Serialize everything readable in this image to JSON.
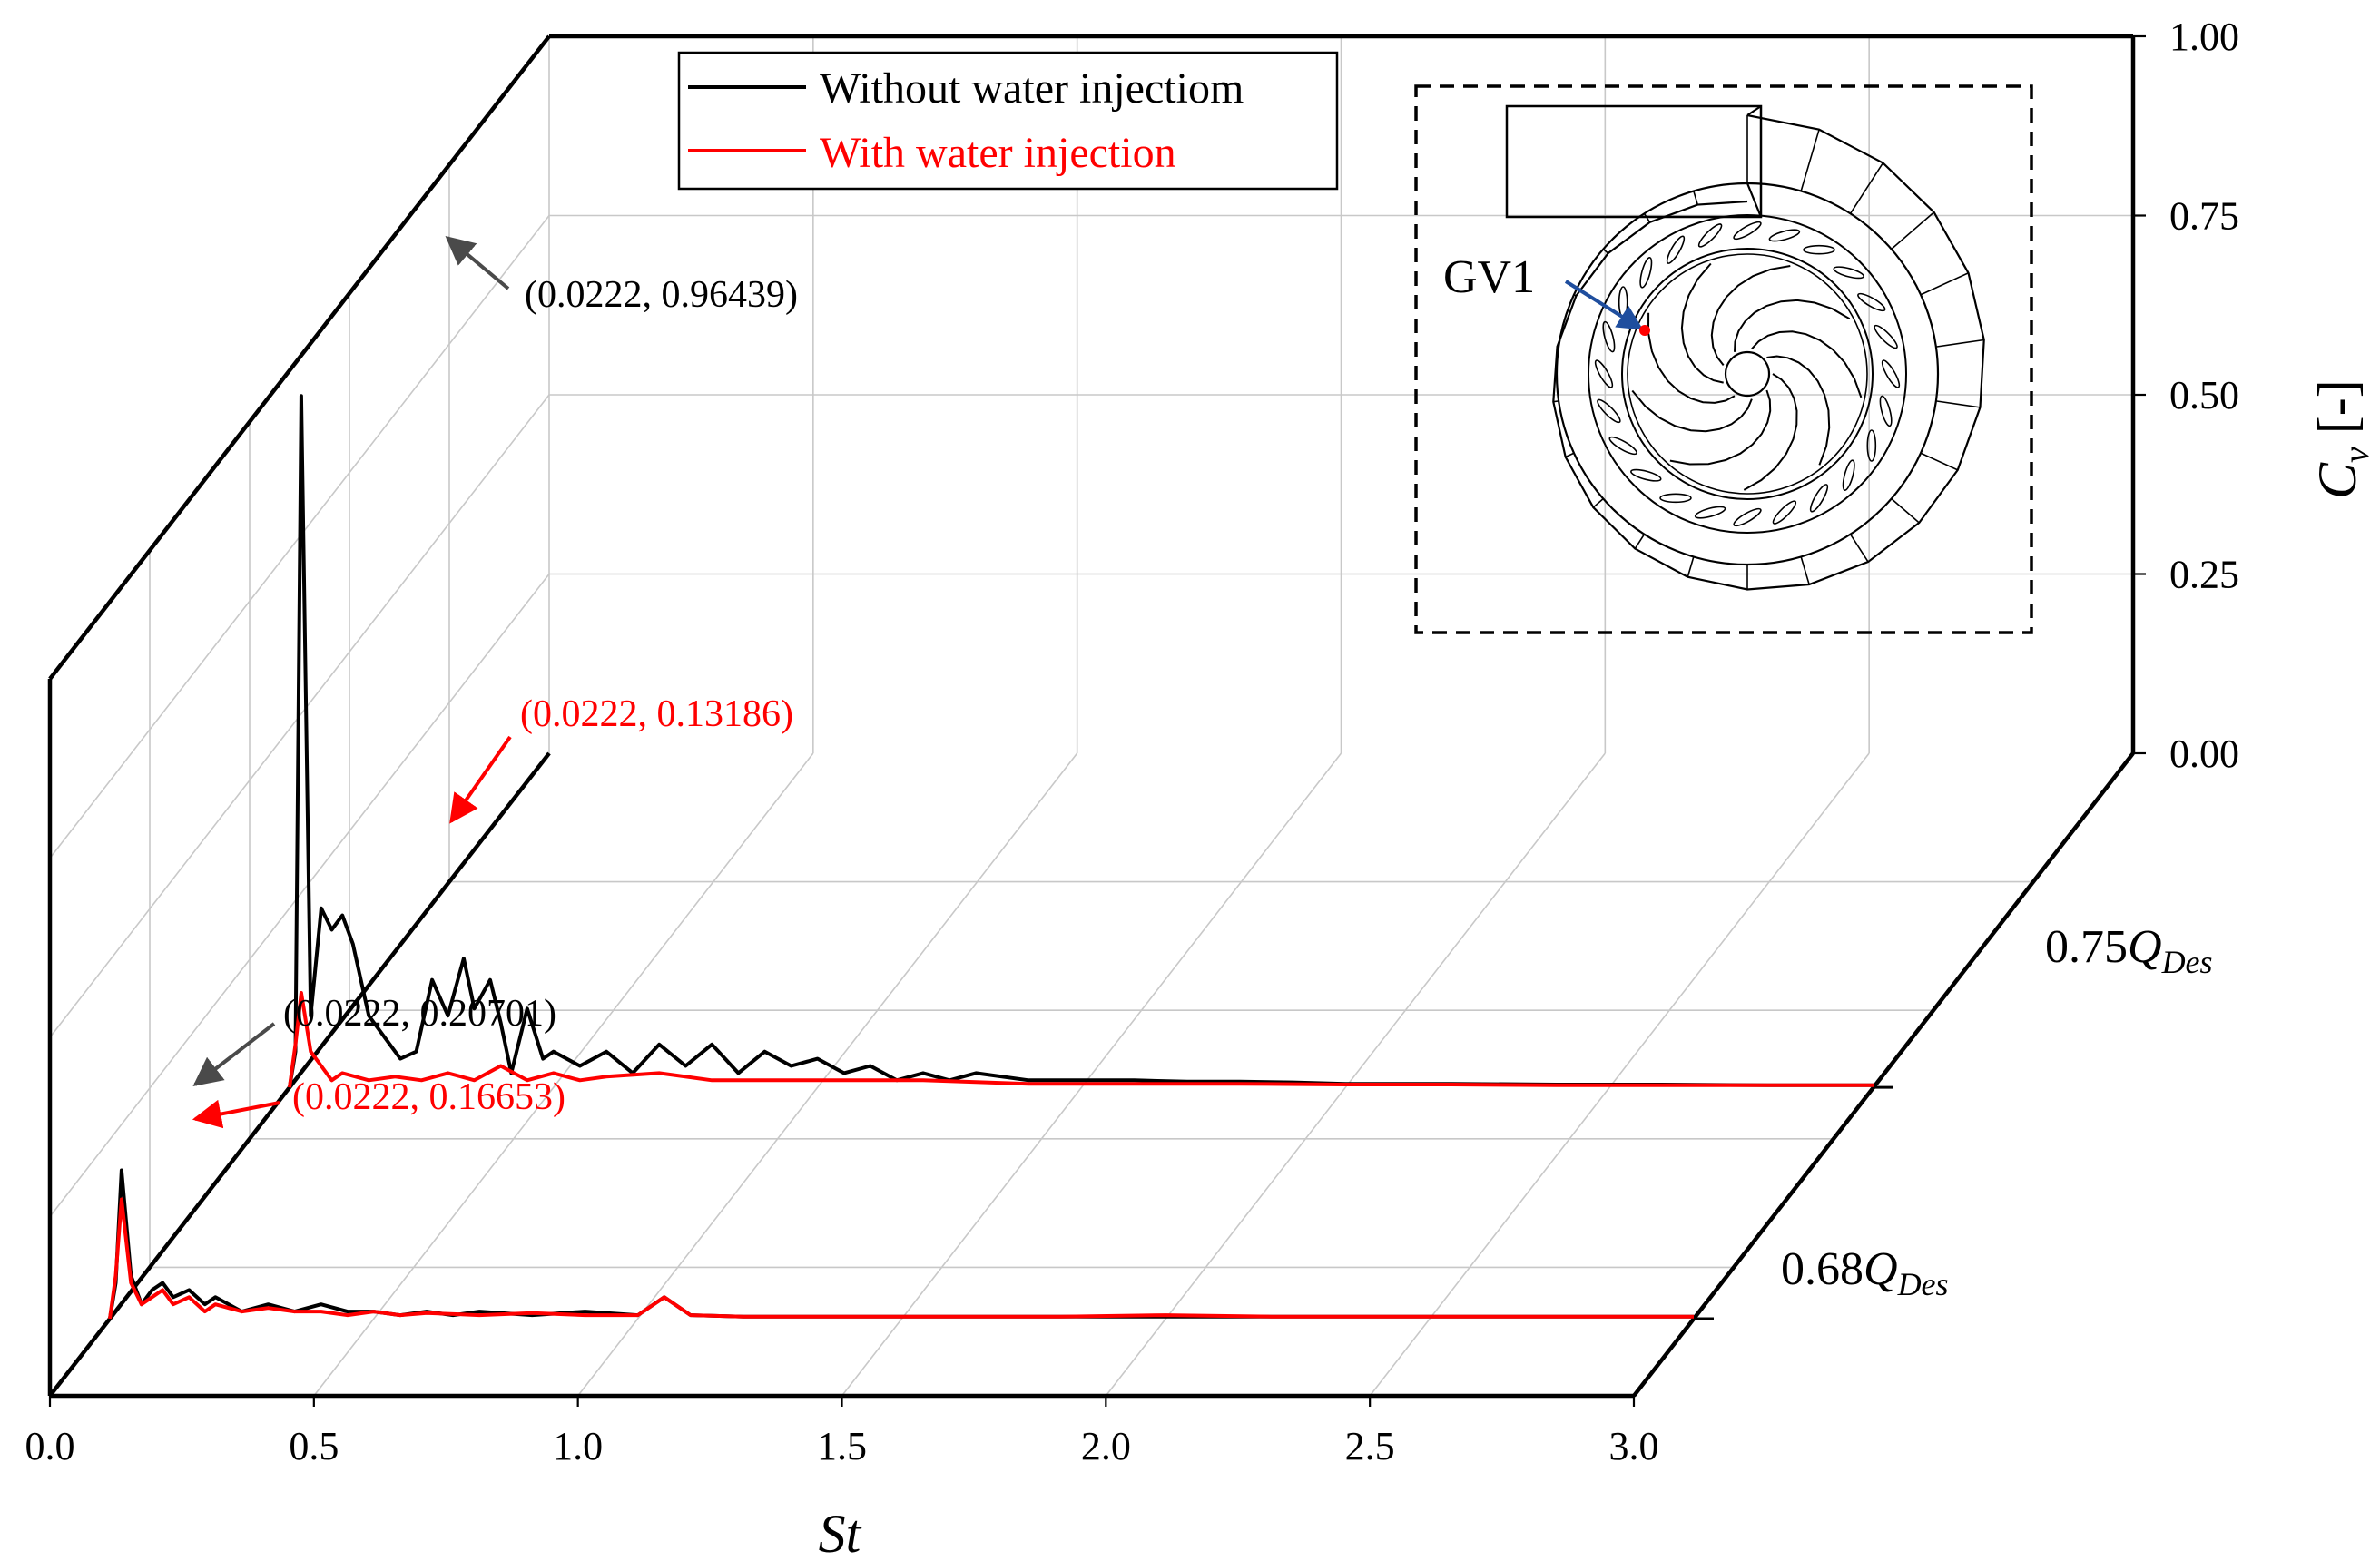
{
  "chart_data": {
    "type": "line",
    "style": "3D waterfall",
    "xlabel": "St",
    "ylabel": "C_v [-]",
    "ylabel_parts": {
      "main": "C",
      "sub": "v",
      "unit": "[-]"
    },
    "xlim": [
      0,
      3.0
    ],
    "ylim": [
      0,
      1.0
    ],
    "x_ticks": [
      "0.0",
      "0.5",
      "1.0",
      "1.5",
      "2.0",
      "2.5",
      "3.0"
    ],
    "x_tick_values": [
      0,
      0.5,
      1.0,
      1.5,
      2.0,
      2.5,
      3.0
    ],
    "y_ticks": [
      "0.00",
      "0.25",
      "0.50",
      "0.75",
      "1.00"
    ],
    "y_tick_values": [
      0,
      0.25,
      0.5,
      0.75,
      1.0
    ],
    "legend": [
      {
        "label": "Without water injectiom",
        "color": "#000000"
      },
      {
        "label": "With water injection",
        "color": "#ff0000"
      }
    ],
    "slices": [
      {
        "name": "0.75Q_Des",
        "label_parts": {
          "num": "0.75",
          "main": "Q",
          "sub": "Des"
        },
        "series": [
          {
            "name": "Without water injectiom",
            "color": "#000000",
            "x": [
              0.0,
              0.0111,
              0.0222,
              0.04,
              0.06,
              0.08,
              0.1,
              0.12,
              0.15,
              0.18,
              0.21,
              0.24,
              0.27,
              0.3,
              0.33,
              0.35,
              0.38,
              0.4,
              0.42,
              0.45,
              0.48,
              0.5,
              0.55,
              0.6,
              0.65,
              0.7,
              0.75,
              0.8,
              0.85,
              0.9,
              0.95,
              1.0,
              1.05,
              1.1,
              1.15,
              1.2,
              1.25,
              1.3,
              1.4,
              1.5,
              1.6,
              1.7,
              1.8,
              1.9,
              2.0,
              2.2,
              2.4,
              2.6,
              2.8,
              3.0
            ],
            "y": [
              0.0,
              0.05,
              0.96439,
              0.1,
              0.25,
              0.22,
              0.24,
              0.2,
              0.1,
              0.07,
              0.04,
              0.05,
              0.15,
              0.1,
              0.18,
              0.11,
              0.15,
              0.09,
              0.02,
              0.11,
              0.04,
              0.05,
              0.03,
              0.05,
              0.02,
              0.06,
              0.03,
              0.06,
              0.02,
              0.05,
              0.03,
              0.04,
              0.02,
              0.03,
              0.01,
              0.02,
              0.01,
              0.02,
              0.01,
              0.01,
              0.01,
              0.008,
              0.008,
              0.007,
              0.005,
              0.005,
              0.004,
              0.004,
              0.003,
              0.003
            ]
          },
          {
            "name": "With water injection",
            "color": "#ff0000",
            "x": [
              0.0,
              0.0111,
              0.0222,
              0.04,
              0.06,
              0.08,
              0.1,
              0.15,
              0.2,
              0.25,
              0.3,
              0.35,
              0.4,
              0.45,
              0.5,
              0.55,
              0.6,
              0.7,
              0.8,
              0.9,
              1.0,
              1.2,
              1.4,
              1.6,
              1.8,
              2.0,
              2.2,
              2.4,
              2.6,
              2.8,
              3.0
            ],
            "y": [
              0.0,
              0.06,
              0.13186,
              0.05,
              0.03,
              0.01,
              0.02,
              0.01,
              0.015,
              0.01,
              0.02,
              0.01,
              0.03,
              0.01,
              0.02,
              0.01,
              0.015,
              0.02,
              0.01,
              0.01,
              0.01,
              0.01,
              0.005,
              0.005,
              0.005,
              0.004,
              0.004,
              0.003,
              0.003,
              0.003,
              0.003
            ]
          }
        ],
        "annotations": [
          {
            "text": "(0.0222, 0.96439)",
            "series": "Without water injectiom",
            "x": 0.0222,
            "y": 0.96439,
            "color": "#000000"
          },
          {
            "text": "(0.0222, 0.13186)",
            "series": "With water injection",
            "x": 0.0222,
            "y": 0.13186,
            "color": "#ff0000"
          }
        ]
      },
      {
        "name": "0.68Q_Des",
        "label_parts": {
          "num": "0.68",
          "main": "Q",
          "sub": "Des"
        },
        "series": [
          {
            "name": "Without water injectiom",
            "color": "#000000",
            "x": [
              0.0,
              0.0111,
              0.0222,
              0.04,
              0.06,
              0.08,
              0.1,
              0.12,
              0.15,
              0.18,
              0.2,
              0.25,
              0.3,
              0.35,
              0.4,
              0.45,
              0.5,
              0.55,
              0.6,
              0.65,
              0.7,
              0.8,
              0.9,
              1.0,
              1.05,
              1.1,
              1.2,
              1.4,
              1.6,
              1.8,
              2.0,
              2.2,
              2.4,
              2.6,
              2.8,
              3.0
            ],
            "y": [
              0.0,
              0.05,
              0.20701,
              0.06,
              0.02,
              0.04,
              0.05,
              0.03,
              0.04,
              0.02,
              0.03,
              0.01,
              0.02,
              0.01,
              0.02,
              0.01,
              0.01,
              0.005,
              0.01,
              0.005,
              0.01,
              0.005,
              0.01,
              0.005,
              0.03,
              0.005,
              0.003,
              0.003,
              0.003,
              0.003,
              0.003,
              0.003,
              0.003,
              0.003,
              0.003,
              0.003
            ]
          },
          {
            "name": "With water injection",
            "color": "#ff0000",
            "x": [
              0.0,
              0.0111,
              0.0222,
              0.04,
              0.06,
              0.08,
              0.1,
              0.12,
              0.15,
              0.18,
              0.2,
              0.25,
              0.3,
              0.35,
              0.4,
              0.45,
              0.5,
              0.55,
              0.6,
              0.7,
              0.8,
              0.9,
              1.0,
              1.05,
              1.1,
              1.2,
              1.4,
              1.6,
              1.8,
              2.0,
              2.2,
              2.4,
              2.6,
              2.8,
              3.0
            ],
            "y": [
              0.0,
              0.06,
              0.16653,
              0.05,
              0.02,
              0.03,
              0.04,
              0.02,
              0.03,
              0.01,
              0.02,
              0.01,
              0.015,
              0.01,
              0.01,
              0.005,
              0.01,
              0.005,
              0.008,
              0.005,
              0.008,
              0.005,
              0.005,
              0.03,
              0.005,
              0.003,
              0.003,
              0.003,
              0.003,
              0.005,
              0.003,
              0.003,
              0.003,
              0.003,
              0.003
            ]
          }
        ],
        "annotations": [
          {
            "text": "(0.0222, 0.20701)",
            "series": "Without water injectiom",
            "x": 0.0222,
            "y": 0.20701,
            "color": "#000000"
          },
          {
            "text": "(0.0222, 0.16653)",
            "series": "With water injection",
            "x": 0.0222,
            "y": 0.16653,
            "color": "#ff0000"
          }
        ]
      }
    ],
    "inset": {
      "label": "GV1",
      "description_marker_color": "#ff0000",
      "arrow_color": "#1f4e9e"
    }
  }
}
